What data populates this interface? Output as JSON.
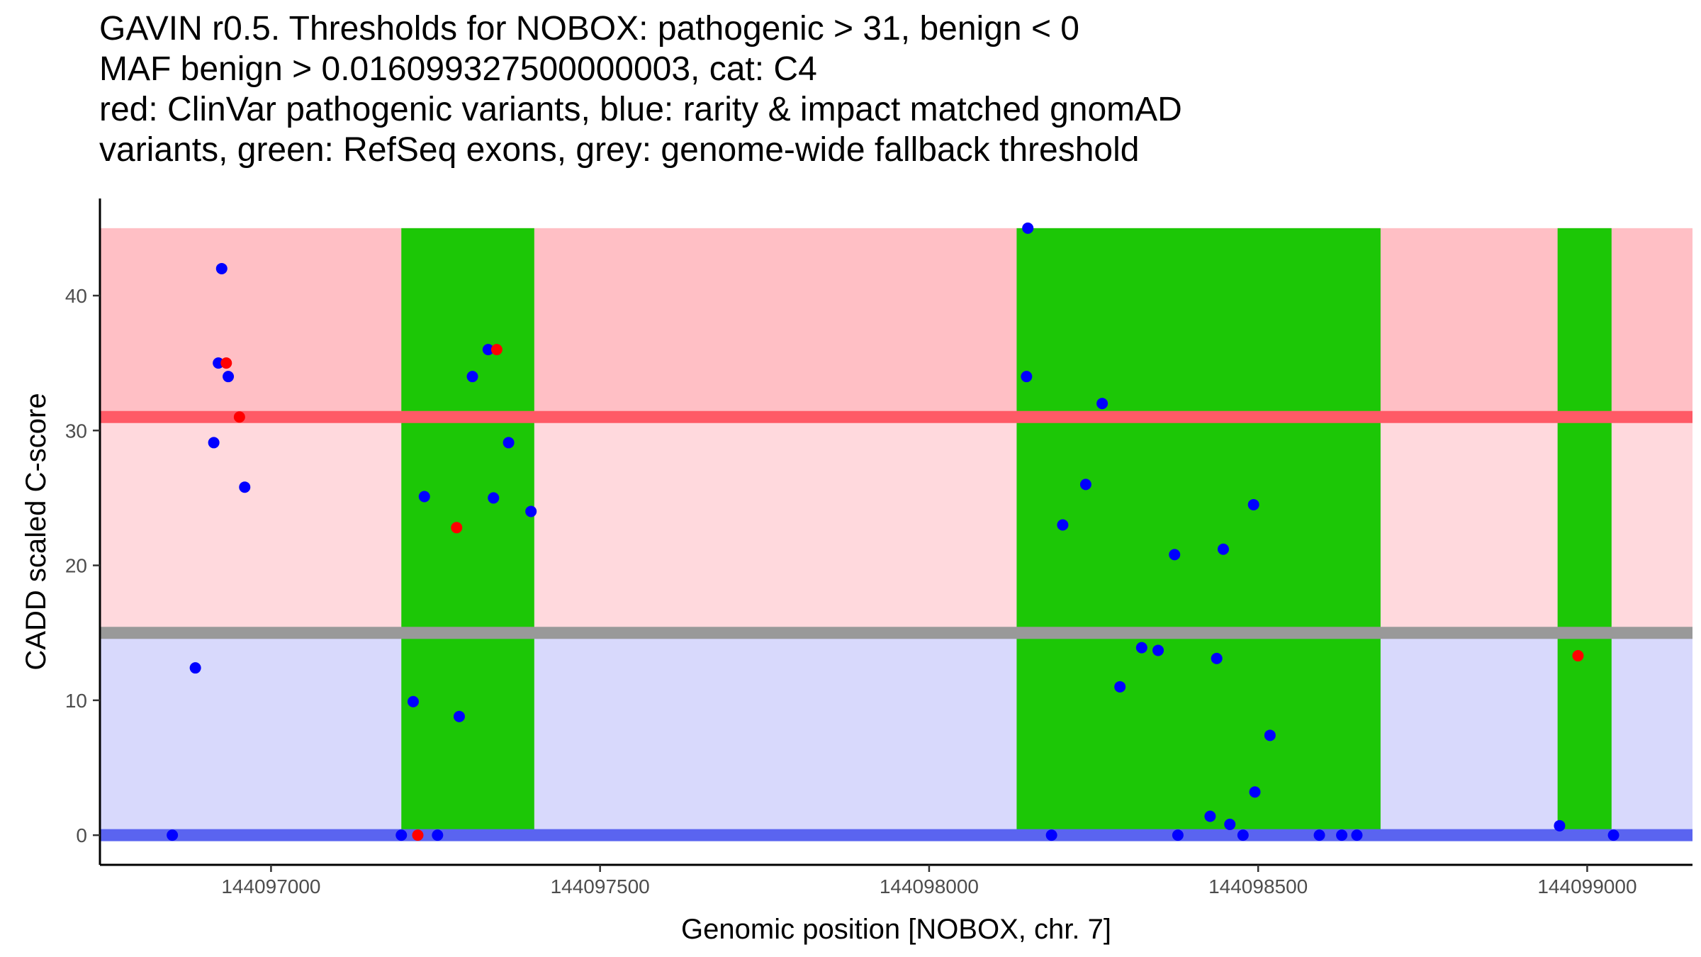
{
  "title_lines": [
    "GAVIN r0.5. Thresholds for NOBOX: pathogenic > 31, benign < 0",
    "MAF benign > 0.016099327500000003, cat: C4",
    "red: ClinVar pathogenic variants, blue: rarity & impact matched gnomAD",
    "variants, green: RefSeq exons, grey: genome-wide fallback threshold"
  ],
  "chart_data": {
    "type": "scatter",
    "xlabel": "Genomic position [NOBOX, chr. 7]",
    "ylabel": "CADD scaled C-score",
    "xlim": [
      144096740,
      144099160
    ],
    "ylim": [
      -2.2,
      47.2
    ],
    "x_ticks": [
      144097000,
      144097500,
      144098000,
      144098500,
      144099000
    ],
    "x_tick_labels": [
      "144097000",
      "144097500",
      "144098000",
      "144098500",
      "144099000"
    ],
    "y_ticks": [
      0,
      10,
      20,
      30,
      40
    ],
    "y_tick_labels": [
      "0",
      "10",
      "20",
      "30",
      "40"
    ],
    "grid": false,
    "bands": [
      {
        "name": "pathogenic zone",
        "y0": 31,
        "y1": 45,
        "color": "#ffbfc5"
      },
      {
        "name": "intermediate zone",
        "y0": 15.0,
        "y1": 31,
        "color": "#ffd9dd"
      },
      {
        "name": "benign zone",
        "y0": 0,
        "y1": 15.0,
        "color": "#d8d9fc"
      }
    ],
    "threshold_lines": [
      {
        "name": "pathogenic threshold",
        "y": 31,
        "color": "#ff5a66"
      },
      {
        "name": "genome-wide fallback threshold",
        "y": 15.0,
        "color": "#999999"
      },
      {
        "name": "benign threshold",
        "y": 0,
        "color": "#5a64f0"
      }
    ],
    "exons": [
      {
        "x0": 144097198,
        "x1": 144097400
      },
      {
        "x0": 144098133,
        "x1": 144098686
      },
      {
        "x0": 144098955,
        "x1": 144099037
      }
    ],
    "exon_color": "#1cc706",
    "series": [
      {
        "color": "#0000ff",
        "points": [
          [
            144096925,
            42
          ],
          [
            144096920,
            35
          ],
          [
            144096935,
            34
          ],
          [
            144096913,
            29.1
          ],
          [
            144096960,
            25.8
          ],
          [
            144096885,
            12.4
          ],
          [
            144096850,
            0
          ],
          [
            144097198,
            0
          ],
          [
            144097216,
            9.9
          ],
          [
            144097233,
            25.1
          ],
          [
            144097253,
            0
          ],
          [
            144097286,
            8.8
          ],
          [
            144097306,
            34
          ],
          [
            144097330,
            36
          ],
          [
            144097338,
            25
          ],
          [
            144097361,
            29.1
          ],
          [
            144097395,
            24
          ],
          [
            144098150,
            45
          ],
          [
            144098148,
            34
          ],
          [
            144098186,
            0
          ],
          [
            144098203,
            23
          ],
          [
            144098238,
            26
          ],
          [
            144098263,
            32
          ],
          [
            144098290,
            11
          ],
          [
            144098323,
            13.9
          ],
          [
            144098348,
            13.7
          ],
          [
            144098373,
            20.8
          ],
          [
            144098378,
            0
          ],
          [
            144098427,
            1.4
          ],
          [
            144098437,
            13.1
          ],
          [
            144098447,
            21.2
          ],
          [
            144098457,
            0.8
          ],
          [
            144098477,
            0
          ],
          [
            144098493,
            24.5
          ],
          [
            144098495,
            3.2
          ],
          [
            144098518,
            7.4
          ],
          [
            144098593,
            0
          ],
          [
            144098627,
            0
          ],
          [
            144098650,
            0
          ],
          [
            144098958,
            0.7
          ],
          [
            144099040,
            0
          ]
        ]
      },
      {
        "color": "#ff0000",
        "points": [
          [
            144096932,
            35
          ],
          [
            144096952,
            31
          ],
          [
            144097223,
            0
          ],
          [
            144097282,
            22.8
          ],
          [
            144097343,
            36
          ],
          [
            144098986,
            13.3
          ]
        ]
      }
    ]
  }
}
